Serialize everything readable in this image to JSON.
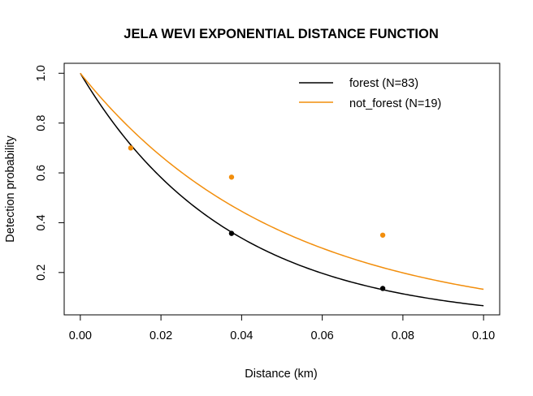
{
  "chart_data": {
    "type": "line",
    "title": "JELA WEVI EXPONENTIAL DISTANCE FUNCTION",
    "xlabel": "Distance (km)",
    "ylabel": "Detection probability",
    "xlim": [
      -0.004,
      0.104
    ],
    "ylim": [
      0.03,
      1.04
    ],
    "xticks": [
      0.0,
      0.02,
      0.04,
      0.06,
      0.08,
      0.1
    ],
    "xtick_labels": [
      "0.00",
      "0.02",
      "0.04",
      "0.06",
      "0.08",
      "0.10"
    ],
    "yticks": [
      0.2,
      0.4,
      0.6,
      0.8,
      1.0
    ],
    "ytick_labels": [
      "0.2",
      "0.4",
      "0.6",
      "0.8",
      "1.0"
    ],
    "grid": false,
    "legend_position": "top-right",
    "series": [
      {
        "name": "forest (N=83)",
        "color": "#000000",
        "curve": "exponential",
        "rate_per_km": 27.1,
        "x_range": [
          0.0,
          0.1
        ],
        "points": [
          {
            "x": 0.0375,
            "y": 0.357
          },
          {
            "x": 0.075,
            "y": 0.136
          }
        ]
      },
      {
        "name": "not_forest (N=19)",
        "color": "#F28E0C",
        "curve": "exponential",
        "rate_per_km": 20.2,
        "x_range": [
          0.0,
          0.1
        ],
        "points": [
          {
            "x": 0.0125,
            "y": 0.7
          },
          {
            "x": 0.0375,
            "y": 0.583
          },
          {
            "x": 0.075,
            "y": 0.35
          }
        ]
      }
    ]
  }
}
